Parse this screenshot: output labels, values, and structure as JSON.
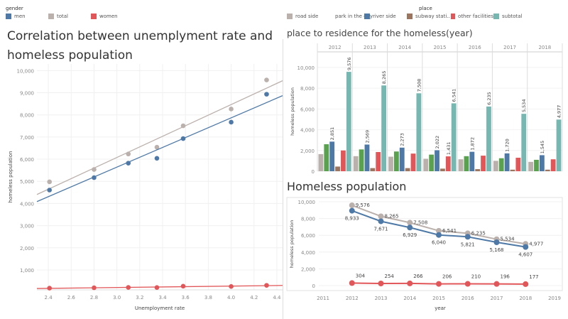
{
  "colors": {
    "men": "#4e79a7",
    "total": "#bab0ac",
    "women": "#e15759",
    "road side": "#bab0ac",
    "park in the city": "#59a14f",
    "river side": "#4e79a7",
    "subway station": "#9c755f",
    "other facilities": "#e15759",
    "subtotal": "#76b7b2"
  },
  "gender_legend": {
    "title": "gender",
    "items": [
      "men",
      "total",
      "women"
    ]
  },
  "place_legend": {
    "title": "place",
    "items": [
      {
        "key": "road side",
        "label": "road side"
      },
      {
        "key": "park in the city",
        "label": "park in the city"
      },
      {
        "key": "river side",
        "label": "river side"
      },
      {
        "key": "subway station",
        "label": "subway stati.."
      },
      {
        "key": "other facilities",
        "label": "other facilities"
      },
      {
        "key": "subtotal",
        "label": "subtotal"
      }
    ]
  },
  "chart_data": [
    {
      "type": "scatter",
      "title": "Correlation between unemplyment rate and homeless population",
      "xlabel": "Unemployment rate",
      "ylabel": "homeless population",
      "xlim": [
        2.3,
        4.45
      ],
      "ylim": [
        100,
        10300
      ],
      "xticks": [
        "2.4",
        "2.6",
        "2.8",
        "3.0",
        "3.2",
        "3.4",
        "3.6",
        "3.8",
        "4.0",
        "4.2",
        "4.4"
      ],
      "yticks": [
        "1,000",
        "2,000",
        "3,000",
        "4,000",
        "5,000",
        "6,000",
        "7,000",
        "8,000",
        "9,000",
        "10,000"
      ],
      "trend_lines": true,
      "grid": true,
      "x": [
        2.41,
        2.8,
        3.1,
        3.35,
        3.58,
        4.0,
        4.31
      ],
      "series": [
        {
          "name": "total",
          "values": [
            4977,
            5534,
            6235,
            6541,
            7508,
            8265,
            9576
          ]
        },
        {
          "name": "men",
          "values": [
            4607,
            5168,
            5821,
            6040,
            6929,
            7671,
            8933
          ]
        },
        {
          "name": "women",
          "values": [
            177,
            196,
            210,
            206,
            266,
            254,
            304
          ]
        }
      ]
    },
    {
      "type": "bar",
      "title": "place to residence for the homeless(year)",
      "ylabel": "homeless population",
      "ylim": [
        0,
        11500
      ],
      "yticks": [
        "0",
        "2,000",
        "4,000",
        "6,000",
        "8,000",
        "10,000"
      ],
      "categories": [
        "2012",
        "2013",
        "2014",
        "2015",
        "2016",
        "2017",
        "2018"
      ],
      "series": [
        {
          "name": "road side",
          "values": [
            1650,
            1450,
            1400,
            1200,
            1150,
            1000,
            900
          ]
        },
        {
          "name": "park in the city",
          "values": [
            2600,
            2100,
            1900,
            1600,
            1450,
            1250,
            1100
          ]
        },
        {
          "name": "river side",
          "values": [
            2851,
            2569,
            2273,
            2022,
            1872,
            1720,
            1545
          ],
          "labels": [
            "2,851",
            "2,569",
            "2,273",
            "2,022",
            "1,872",
            "1,720",
            "1,545"
          ]
        },
        {
          "name": "subway station",
          "values": [
            450,
            300,
            300,
            250,
            200,
            150,
            150
          ]
        },
        {
          "name": "other facilities",
          "values": [
            2000,
            1850,
            1700,
            1431,
            1500,
            1300,
            1150
          ],
          "labels": [
            "",
            "",
            "",
            "1,431",
            "",
            "",
            ""
          ]
        },
        {
          "name": "subtotal",
          "values": [
            9576,
            8265,
            7508,
            6541,
            6235,
            5534,
            4977
          ],
          "labels": [
            "9,576",
            "8,265",
            "7,508",
            "6,541",
            "6,235",
            "5,534",
            "4,977"
          ]
        }
      ]
    },
    {
      "type": "line",
      "title": "Homeless population",
      "xlabel": "year",
      "ylabel": "homeless population",
      "xlim": [
        2011,
        2019
      ],
      "ylim": [
        -600,
        10600
      ],
      "xticks": [
        "2011",
        "2012",
        "2013",
        "2014",
        "2015",
        "2016",
        "2017",
        "2018",
        "2019"
      ],
      "yticks": [
        "0",
        "2,000",
        "4,000",
        "6,000",
        "8,000",
        "10,000"
      ],
      "x": [
        2012,
        2013,
        2014,
        2015,
        2016,
        2017,
        2018
      ],
      "series": [
        {
          "name": "total",
          "values": [
            9576,
            8265,
            7508,
            6541,
            6235,
            5534,
            4977
          ],
          "labels": [
            "9,576",
            "8,265",
            "7,508",
            "6,541",
            "6,235",
            "5,534",
            "4,977"
          ]
        },
        {
          "name": "men",
          "values": [
            8933,
            7671,
            6929,
            6040,
            5821,
            5168,
            4607
          ],
          "labels": [
            "8,933",
            "7,671",
            "6,929",
            "6,040",
            "5,821",
            "5,168",
            "4,607"
          ]
        },
        {
          "name": "women",
          "values": [
            304,
            254,
            266,
            206,
            210,
            196,
            177
          ],
          "labels": [
            "304",
            "254",
            "266",
            "206",
            "210",
            "196",
            "177"
          ]
        }
      ]
    }
  ]
}
